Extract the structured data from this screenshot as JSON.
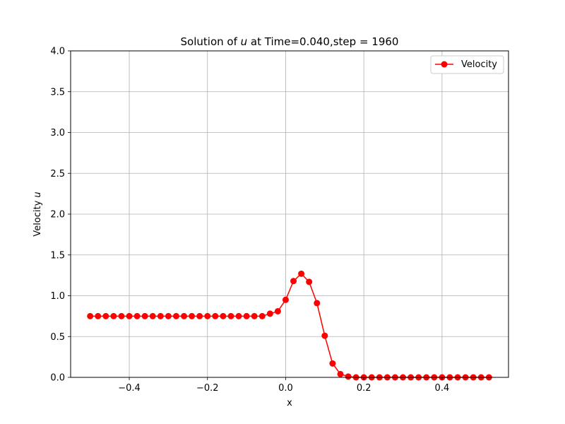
{
  "chart_data": {
    "type": "line",
    "title_prefix": "Solution of ",
    "title_var": "u",
    "title_suffix": " at Time=0.040,step = 1960",
    "xlabel": "x",
    "ylabel_text": "Velocity ",
    "ylabel_var": "u",
    "xlim": [
      -0.55,
      0.57
    ],
    "ylim": [
      0,
      4.0
    ],
    "xticks": [
      -0.4,
      -0.2,
      0.0,
      0.2,
      0.4
    ],
    "xtick_labels": [
      "−0.4",
      "−0.2",
      "0.0",
      "0.2",
      "0.4"
    ],
    "yticks": [
      0,
      0.5,
      1.0,
      1.5,
      2.0,
      2.5,
      3.0,
      3.5,
      4.0
    ],
    "ytick_labels": [
      "0.0",
      "0.5",
      "1.0",
      "1.5",
      "2.0",
      "2.5",
      "3.0",
      "3.5",
      "4.0"
    ],
    "grid": true,
    "legend_position": "top-right",
    "series": [
      {
        "name": "Velocity",
        "color": "#ff0000",
        "marker": "circle",
        "x": [
          -0.5,
          -0.48,
          -0.46,
          -0.44,
          -0.42,
          -0.4,
          -0.38,
          -0.36,
          -0.34,
          -0.32,
          -0.3,
          -0.28,
          -0.26,
          -0.24,
          -0.22,
          -0.2,
          -0.18,
          -0.16,
          -0.14,
          -0.12,
          -0.1,
          -0.08,
          -0.06,
          -0.04,
          -0.02,
          0.0,
          0.02,
          0.04,
          0.06,
          0.08,
          0.1,
          0.12,
          0.14,
          0.16,
          0.18,
          0.2,
          0.22,
          0.24,
          0.26,
          0.28,
          0.3,
          0.32,
          0.34,
          0.36,
          0.38,
          0.4,
          0.42,
          0.44,
          0.46,
          0.48,
          0.5,
          0.52
        ],
        "y": [
          0.75,
          0.75,
          0.75,
          0.75,
          0.75,
          0.75,
          0.75,
          0.75,
          0.75,
          0.75,
          0.75,
          0.75,
          0.75,
          0.75,
          0.75,
          0.75,
          0.75,
          0.75,
          0.75,
          0.75,
          0.75,
          0.75,
          0.75,
          0.78,
          0.81,
          0.95,
          1.18,
          1.27,
          1.17,
          0.91,
          0.51,
          0.17,
          0.04,
          0.01,
          0.0,
          0.0,
          0.0,
          0.0,
          0.0,
          0.0,
          0.0,
          0.0,
          0.0,
          0.0,
          0.0,
          0.0,
          0.0,
          0.0,
          0.0,
          0.0,
          0.0,
          0.0
        ]
      }
    ]
  }
}
